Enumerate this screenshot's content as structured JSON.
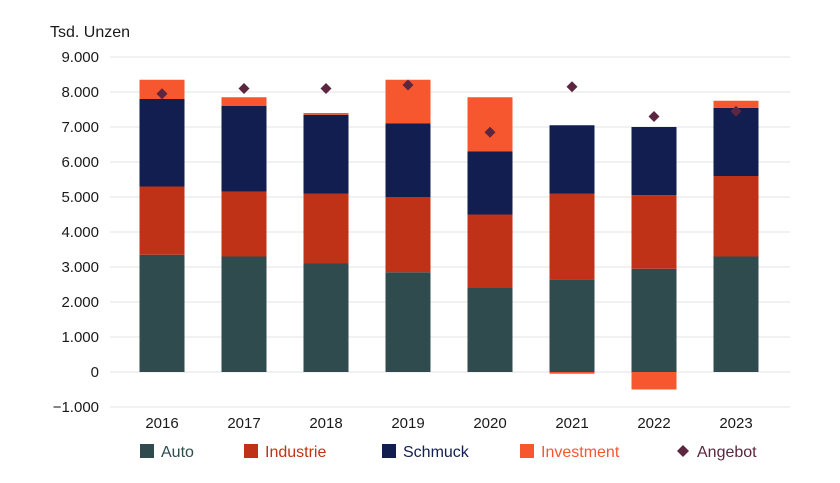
{
  "chart_data": {
    "type": "bar",
    "stacked": true,
    "ylabel": "Tsd. Unzen",
    "categories": [
      "2016",
      "2017",
      "2018",
      "2019",
      "2020",
      "2021",
      "2022",
      "2023"
    ],
    "ylim": [
      -1000,
      9000
    ],
    "yticks": [
      -1000,
      0,
      1000,
      2000,
      3000,
      4000,
      5000,
      6000,
      7000,
      8000,
      9000
    ],
    "ytick_labels": [
      "−1.000",
      "0",
      "1.000",
      "2.000",
      "3.000",
      "4.000",
      "5.000",
      "6.000",
      "7.000",
      "8.000",
      "9.000"
    ],
    "grid": true,
    "legend_position": "bottom",
    "series": [
      {
        "name": "Auto",
        "kind": "bar",
        "color": "#2f4b4e",
        "values": [
          3350,
          3300,
          3100,
          2850,
          2400,
          2650,
          2950,
          3300
        ]
      },
      {
        "name": "Industrie",
        "kind": "bar",
        "color": "#c03218",
        "values": [
          1950,
          1850,
          2000,
          2150,
          2100,
          2450,
          2100,
          2300
        ]
      },
      {
        "name": "Schmuck",
        "kind": "bar",
        "color": "#121e4f",
        "values": [
          2500,
          2450,
          2250,
          2100,
          1800,
          1950,
          1950,
          1950
        ]
      },
      {
        "name": "Investment",
        "kind": "bar",
        "color": "#f7572f",
        "values": [
          550,
          250,
          50,
          1250,
          1550,
          -50,
          -500,
          200
        ]
      },
      {
        "name": "Angebot",
        "kind": "marker",
        "color": "#5c2640",
        "values": [
          7950,
          8100,
          8100,
          8200,
          6850,
          8150,
          7300,
          7450
        ]
      }
    ]
  }
}
